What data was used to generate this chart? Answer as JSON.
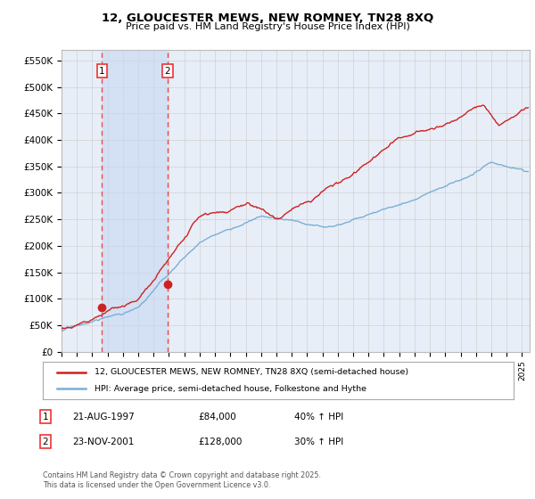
{
  "title": "12, GLOUCESTER MEWS, NEW ROMNEY, TN28 8XQ",
  "subtitle": "Price paid vs. HM Land Registry's House Price Index (HPI)",
  "legend_line1": "12, GLOUCESTER MEWS, NEW ROMNEY, TN28 8XQ (semi-detached house)",
  "legend_line2": "HPI: Average price, semi-detached house, Folkestone and Hythe",
  "footnote": "Contains HM Land Registry data © Crown copyright and database right 2025.\nThis data is licensed under the Open Government Licence v3.0.",
  "table_rows": [
    {
      "num": "1",
      "date": "21-AUG-1997",
      "price": "£84,000",
      "hpi": "40% ↑ HPI"
    },
    {
      "num": "2",
      "date": "23-NOV-2001",
      "price": "£128,000",
      "hpi": "30% ↑ HPI"
    }
  ],
  "sale1_year": 1997.64,
  "sale1_price": 84000,
  "sale2_year": 2001.9,
  "sale2_price": 128000,
  "vline1_year": 1997.64,
  "vline2_year": 2001.9,
  "ylim": [
    0,
    570000
  ],
  "xlim_start": 1995.0,
  "xlim_end": 2025.5,
  "yticks": [
    0,
    50000,
    100000,
    150000,
    200000,
    250000,
    300000,
    350000,
    400000,
    450000,
    500000,
    550000
  ],
  "ytick_labels": [
    "£0",
    "£50K",
    "£100K",
    "£150K",
    "£200K",
    "£250K",
    "£300K",
    "£350K",
    "£400K",
    "£450K",
    "£500K",
    "£550K"
  ],
  "hpi_color": "#7bafd4",
  "price_color": "#cc2222",
  "vline_color": "#ee3333",
  "background_color": "#e8eef8",
  "plot_bg_color": "#ffffff",
  "grid_color": "#d0d0d0",
  "span_color": "#c8d8f0"
}
